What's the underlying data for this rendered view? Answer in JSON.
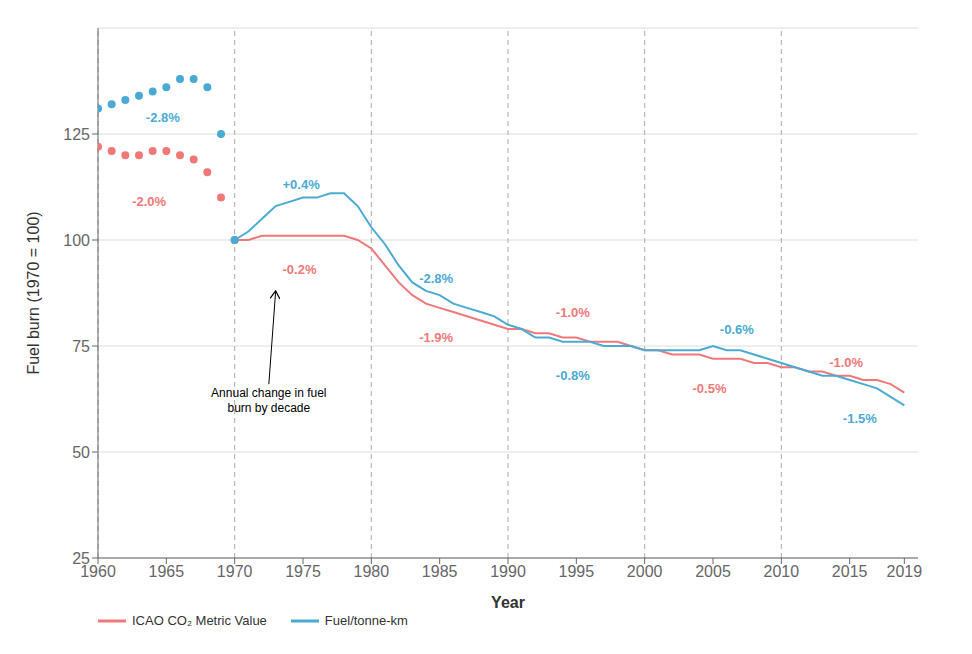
{
  "chart_data": {
    "type": "line",
    "xlabel": "Year",
    "ylabel": "Fuel burn (1970 = 100)",
    "xlim": [
      1960,
      2020
    ],
    "ylim": [
      25,
      150
    ],
    "xticks": [
      1960,
      1965,
      1970,
      1975,
      1980,
      1985,
      1990,
      1995,
      2000,
      2005,
      2010,
      2015,
      2019
    ],
    "yticks": [
      25,
      50,
      75,
      100,
      125
    ],
    "grid": "y",
    "legend": "lower left",
    "vlines": [
      1960,
      1970,
      1980,
      1990,
      2000,
      2010
    ],
    "series": [
      {
        "color": "#F07878",
        "marker": "o",
        "line_style": "none",
        "x": [
          1960,
          1961,
          1962,
          1963,
          1964,
          1965,
          1966,
          1967,
          1968,
          1969,
          1970
        ],
        "values": [
          122,
          121,
          120,
          120,
          121,
          121,
          120,
          119,
          116,
          110,
          100
        ]
      },
      {
        "color": "#4AAAD4",
        "marker": "o",
        "line_style": "none",
        "x": [
          1960,
          1961,
          1962,
          1963,
          1964,
          1965,
          1966,
          1967,
          1968,
          1969,
          1970
        ],
        "values": [
          131,
          132,
          133,
          134,
          135,
          136,
          138,
          138,
          136,
          125,
          100
        ]
      },
      {
        "name": "ICAO CO₂ Metric Value",
        "color": "#F07878",
        "line_style": "solid",
        "x": [
          1970,
          1971,
          1972,
          1973,
          1974,
          1975,
          1976,
          1977,
          1978,
          1979,
          1980,
          1981,
          1982,
          1983,
          1984,
          1985,
          1986,
          1987,
          1988,
          1989,
          1990,
          1991,
          1992,
          1993,
          1994,
          1995,
          1996,
          1997,
          1998,
          1999,
          2000,
          2001,
          2002,
          2003,
          2004,
          2005,
          2006,
          2007,
          2008,
          2009,
          2010,
          2011,
          2012,
          2013,
          2014,
          2015,
          2016,
          2017,
          2018,
          2019
        ],
        "values": [
          100,
          100,
          101,
          101,
          101,
          101,
          101,
          101,
          101,
          100,
          98,
          94,
          90,
          87,
          85,
          84,
          83,
          82,
          81,
          80,
          79,
          79,
          78,
          78,
          77,
          77,
          76,
          76,
          76,
          75,
          74,
          74,
          73,
          73,
          73,
          72,
          72,
          72,
          71,
          71,
          70,
          70,
          69,
          69,
          68,
          68,
          67,
          67,
          66,
          64
        ]
      },
      {
        "name": "Fuel/tonne-km",
        "color": "#4AAAD4",
        "line_style": "solid",
        "x": [
          1970,
          1971,
          1972,
          1973,
          1974,
          1975,
          1976,
          1977,
          1978,
          1979,
          1980,
          1981,
          1982,
          1983,
          1984,
          1985,
          1986,
          1987,
          1988,
          1989,
          1990,
          1991,
          1992,
          1993,
          1994,
          1995,
          1996,
          1997,
          1998,
          1999,
          2000,
          2001,
          2002,
          2003,
          2004,
          2005,
          2006,
          2007,
          2008,
          2009,
          2010,
          2011,
          2012,
          2013,
          2014,
          2015,
          2016,
          2017,
          2018,
          2019
        ],
        "values": [
          100,
          102,
          105,
          108,
          109,
          110,
          110,
          111,
          111,
          108,
          103,
          99,
          94,
          90,
          88,
          87,
          85,
          84,
          83,
          82,
          80,
          79,
          77,
          77,
          76,
          76,
          76,
          75,
          75,
          75,
          74,
          74,
          74,
          74,
          74,
          75,
          74,
          74,
          73,
          72,
          71,
          70,
          69,
          68,
          68,
          67,
          66,
          65,
          63,
          61
        ]
      }
    ],
    "annotations": [
      {
        "text": "-2.8%",
        "x": 1963.5,
        "y": 129,
        "color": "#4AAAD4"
      },
      {
        "text": "+0.4%",
        "x": 1973.5,
        "y": 113,
        "color": "#4AAAD4"
      },
      {
        "text": "-2.8%",
        "x": 1983.5,
        "y": 91,
        "color": "#4AAAD4"
      },
      {
        "text": "-0.8%",
        "x": 1993.5,
        "y": 68,
        "color": "#4AAAD4"
      },
      {
        "text": "-0.6%",
        "x": 2005.5,
        "y": 79,
        "color": "#4AAAD4"
      },
      {
        "text": "-1.5%",
        "x": 2014.5,
        "y": 58,
        "color": "#4AAAD4"
      },
      {
        "text": "-2.0%",
        "x": 1962.5,
        "y": 109,
        "color": "#F07878"
      },
      {
        "text": "-0.2%",
        "x": 1973.5,
        "y": 93,
        "color": "#F07878"
      },
      {
        "text": "-1.9%",
        "x": 1983.5,
        "y": 77,
        "color": "#F07878"
      },
      {
        "text": "-1.0%",
        "x": 1993.5,
        "y": 83,
        "color": "#F07878"
      },
      {
        "text": "-0.5%",
        "x": 2003.5,
        "y": 65,
        "color": "#F07878"
      },
      {
        "text": "-1.0%",
        "x": 2013.5,
        "y": 71,
        "color": "#F07878"
      },
      {
        "text": "Annual change in fuel\nburn by decade",
        "x": 1972.5,
        "y": 66,
        "arrow_x": 1973,
        "arrow_y": 88
      }
    ]
  }
}
